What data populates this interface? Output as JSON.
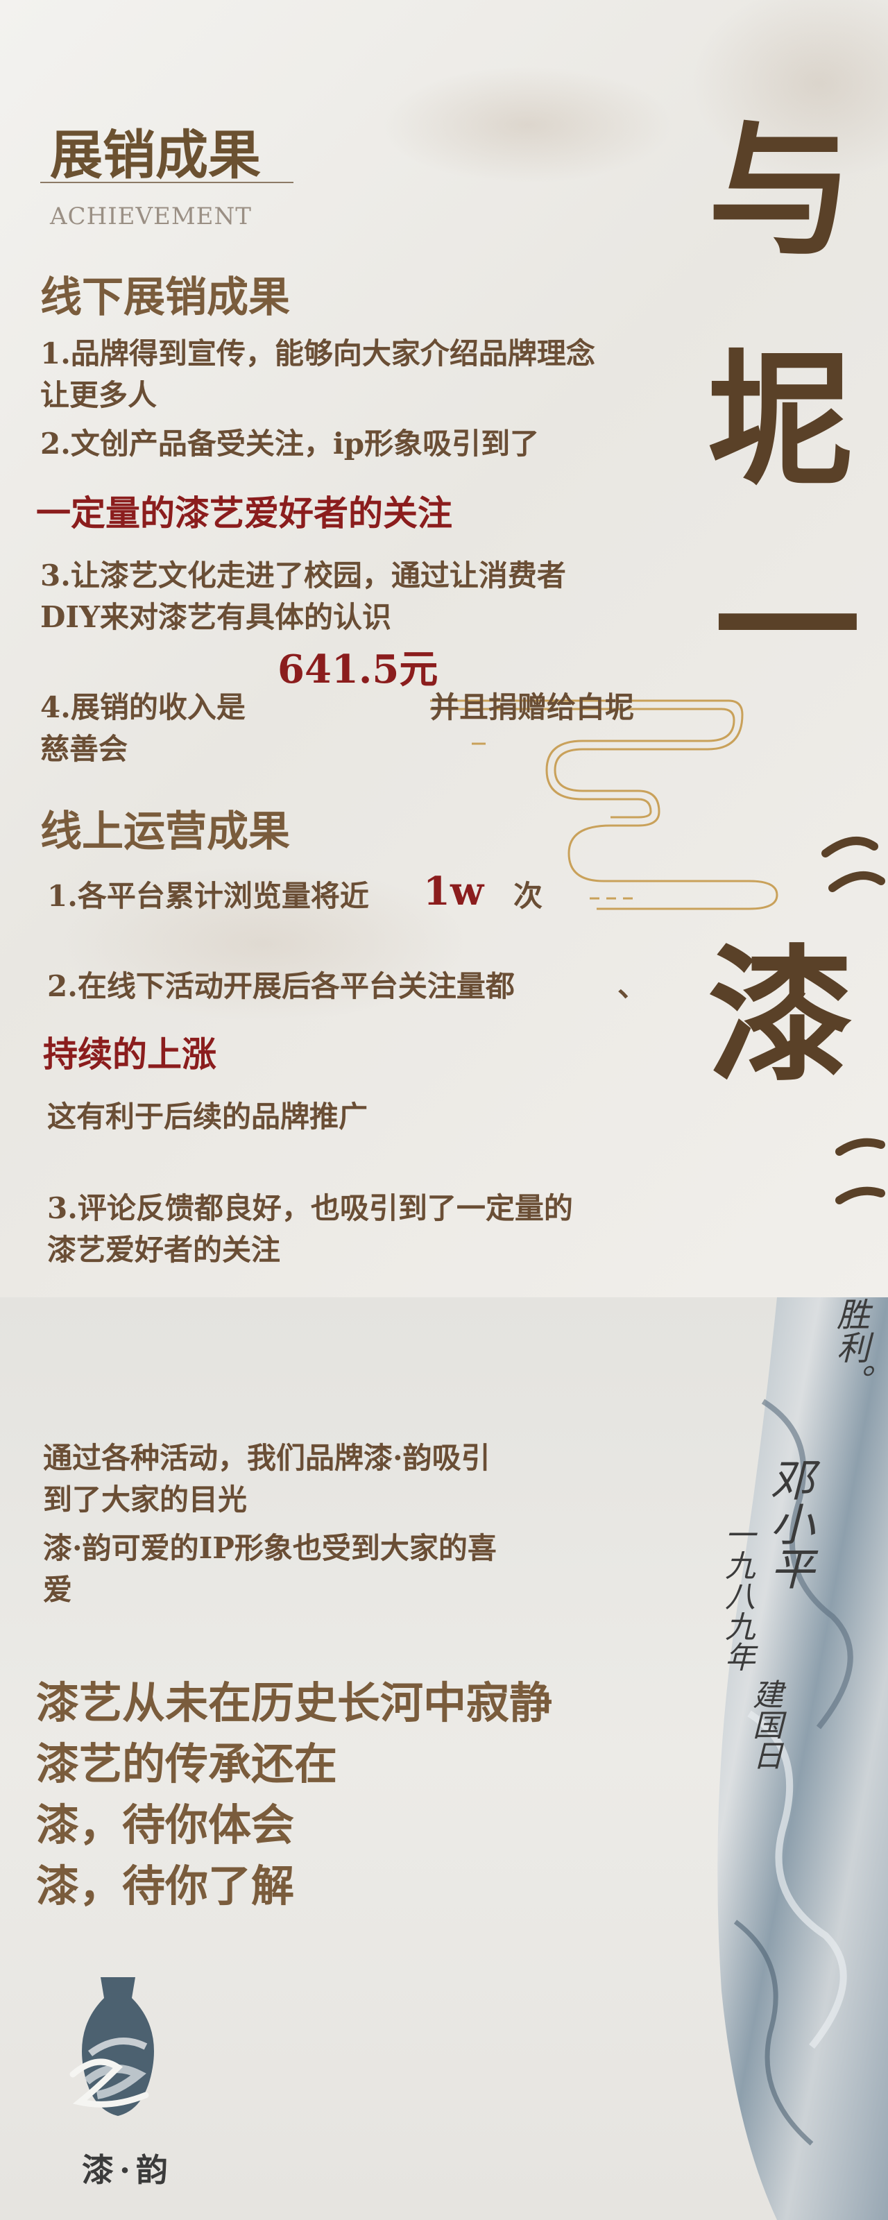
{
  "header": {
    "title": "展销成果",
    "subtitle": "ACHIEVEMENT"
  },
  "offline": {
    "heading": "线下展销成果",
    "line1a": "1.品牌得到宣传，能够向大家介绍品牌理念",
    "line1b": "让更多人",
    "line2": "2.文创产品备受关注，ip形象吸引到了",
    "line2_highlight": "一定量的漆艺爱好者的关注",
    "line3a": "3.让漆艺文化走进了校园，通过让消费者",
    "line3b": "DIY来对漆艺有具体的认识",
    "income_value": "641.5元",
    "line4a": "4.展销的收入是",
    "line4b": "并且捐赠给白坭",
    "line4c": "慈善会"
  },
  "online": {
    "heading": "线上运营成果",
    "line1_prefix": "1.各平台累计浏览量将近",
    "line1_value": "1w",
    "line1_suffix": "次",
    "line2": "2.在线下活动开展后各平台关注量都",
    "line2_comma": "、",
    "line2_highlight": "持续的上涨",
    "line2_note": "这有利于后续的品牌推广",
    "line3a": "3.评论反馈都良好，也吸引到了一定量的",
    "line3b": "漆艺爱好者的关注"
  },
  "calligraphy": {
    "chars": [
      "与",
      "坭",
      "一",
      "漆"
    ]
  },
  "summary": {
    "line1": "通过各种活动，我们品牌漆·韵吸引",
    "line2": "到了大家的目光",
    "line3": "漆·韵可爱的IP形象也受到大家的喜",
    "line4": "爱"
  },
  "slogans": [
    "漆艺从未在历史长河中寂静",
    "漆艺的传承还在",
    "漆，待你体会",
    "漆，待你了解"
  ],
  "inscription": {
    "top": "胜利。",
    "signature": "邓小平",
    "col2": "一九八九年",
    "col3": "建国日"
  },
  "logo": {
    "text": "漆·韵"
  },
  "colors": {
    "brown": "#6b5131",
    "red": "#8b1d1d",
    "gold": "#c9a15a"
  }
}
